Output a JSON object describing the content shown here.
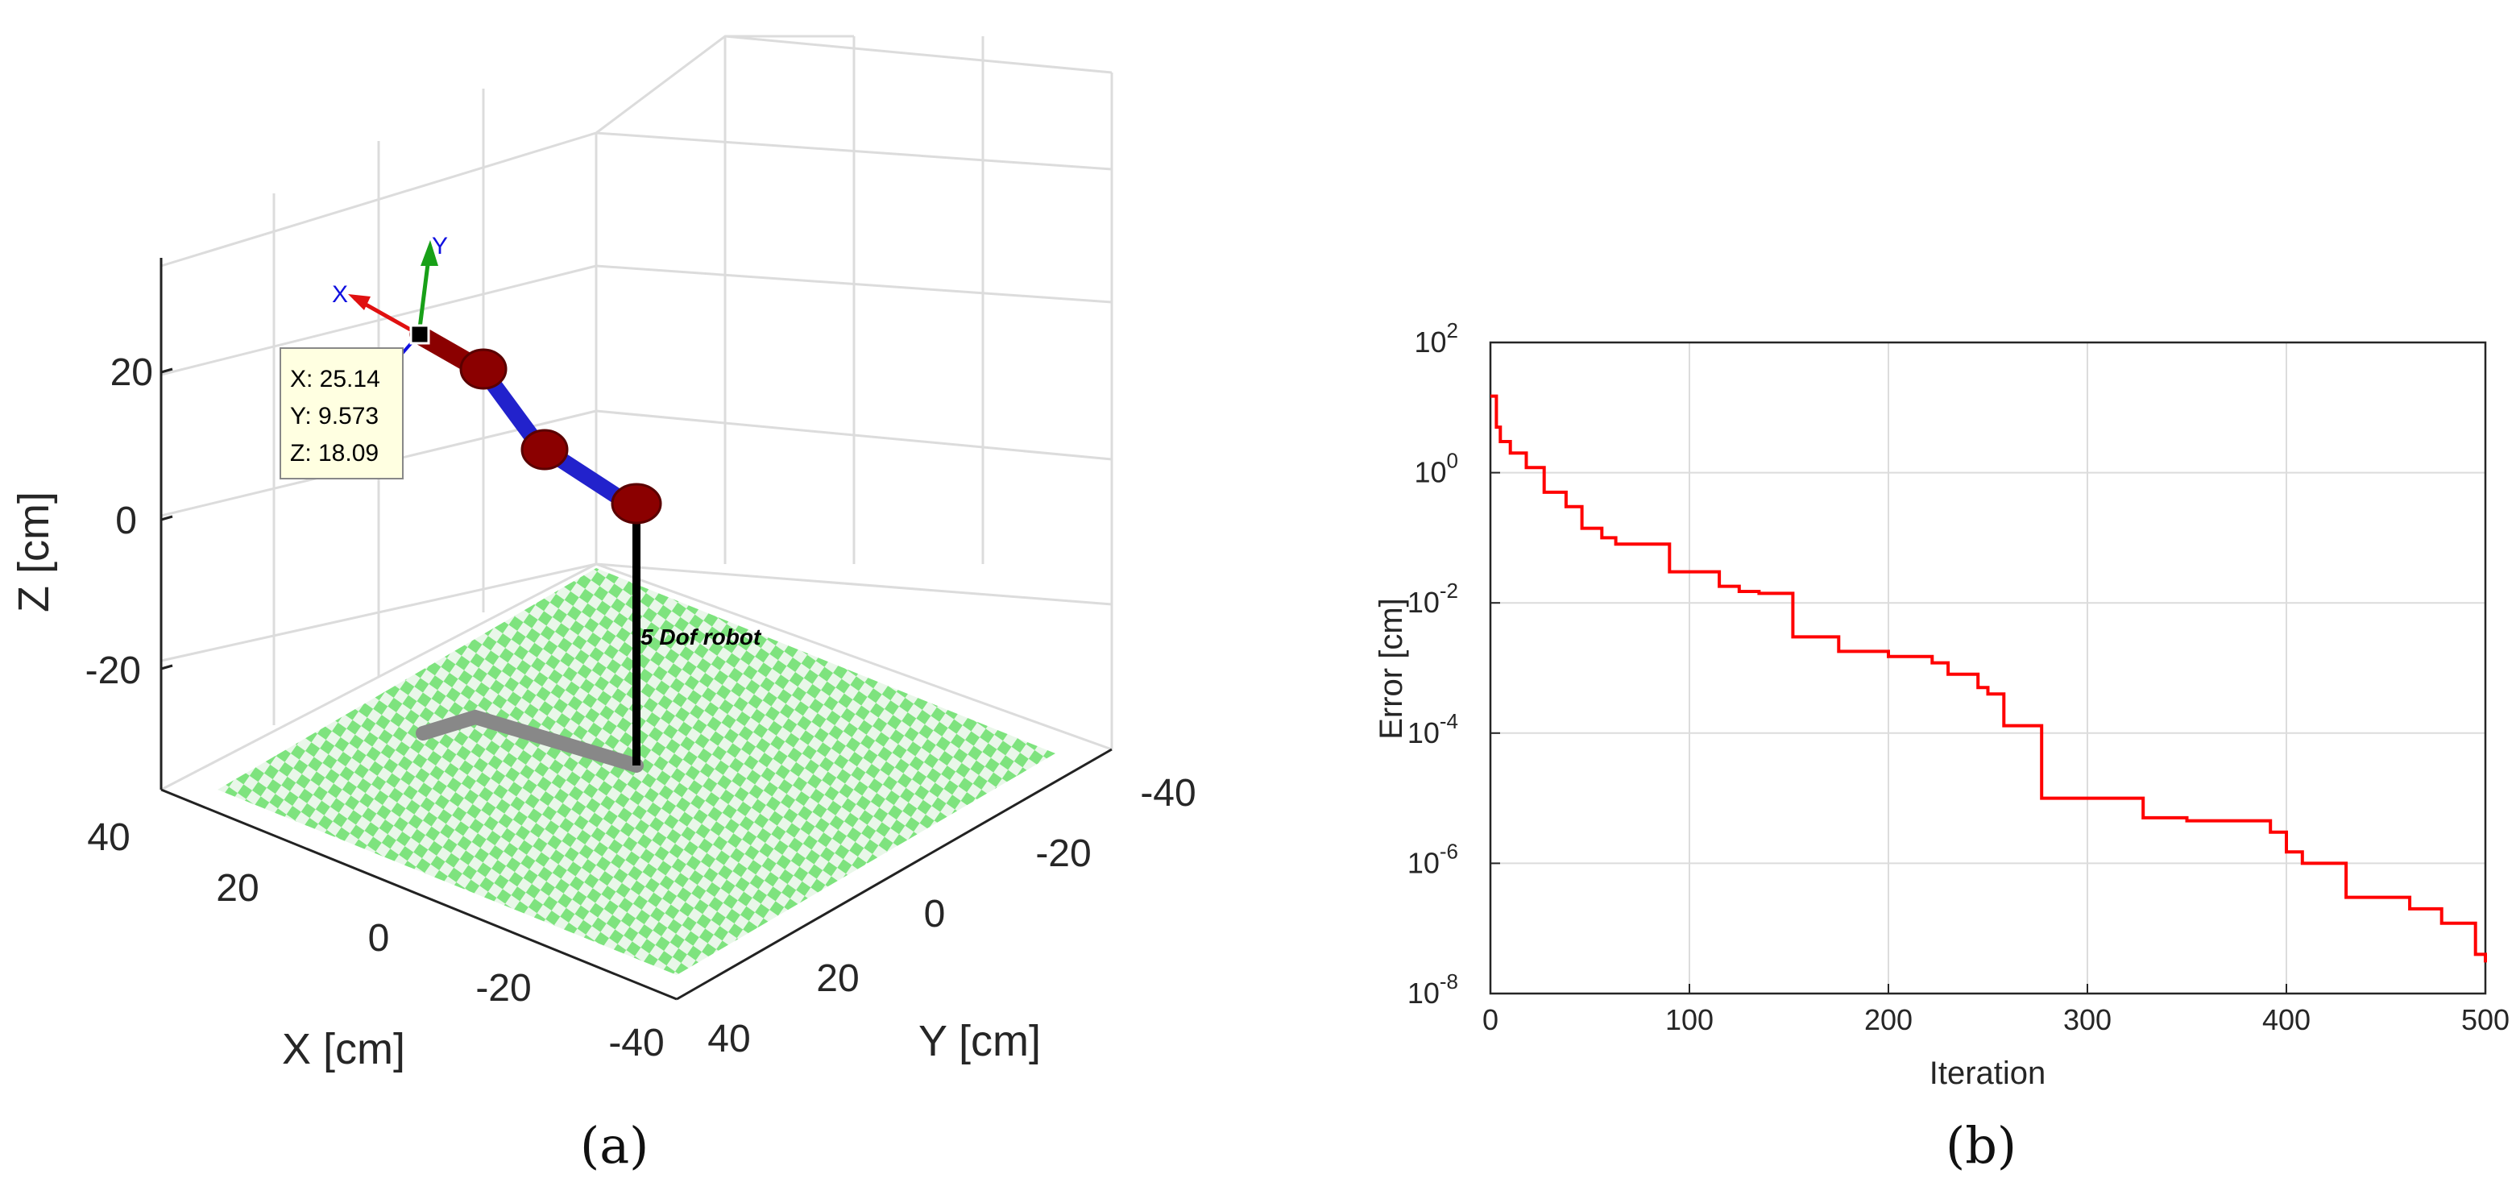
{
  "captions": {
    "a": "(a)",
    "b": "(b)"
  },
  "colors": {
    "error_line": "#ff0000",
    "robot_link": "#2222cc",
    "robot_joint": "#8b0000",
    "floor_a": "#7ee37e",
    "floor_b": "#e9f7e9",
    "grid": "#dcdcdc",
    "datatip_bg": "#ffffe1"
  },
  "panel_a": {
    "xlabel": "X [cm]",
    "ylabel": "Y [cm]",
    "zlabel": "Z [cm]",
    "z_ticks": [
      "20",
      "0",
      "-20"
    ],
    "x_ticks": [
      "40",
      "20",
      "0",
      "-20",
      "-40"
    ],
    "y_ticks": [
      "-40",
      "-20",
      "0",
      "20",
      "40"
    ],
    "robot_label": "5 Dof robot",
    "frame_axes": {
      "x": "X",
      "y": "Y"
    },
    "datatip": {
      "x": "X: 25.14",
      "y": "Y: 9.573",
      "z": "Z: 18.09"
    },
    "icons": [
      "end-effector-marker-icon"
    ]
  },
  "chart_data": {
    "type": "line",
    "xlabel": "Iteration",
    "ylabel": "Error [cm]",
    "xlim": [
      0,
      500
    ],
    "ylim": [
      1e-08,
      100
    ],
    "yscale": "log",
    "grid": true,
    "x_ticks": [
      "0",
      "100",
      "200",
      "300",
      "400",
      "500"
    ],
    "y_tick_exponents": [
      "2",
      "0",
      "-2",
      "-4",
      "-6",
      "-8"
    ],
    "series": [
      {
        "color": "#ff0000",
        "step": true,
        "x": [
          0,
          3,
          5,
          10,
          18,
          27,
          38,
          46,
          56,
          63,
          90,
          115,
          125,
          135,
          152,
          175,
          200,
          222,
          230,
          245,
          250,
          258,
          277,
          328,
          350,
          392,
          400,
          408,
          430,
          462,
          478,
          495,
          500
        ],
        "y": [
          15,
          5,
          3,
          2,
          1.2,
          0.5,
          0.3,
          0.14,
          0.1,
          0.08,
          0.03,
          0.018,
          0.015,
          0.014,
          0.003,
          0.0018,
          0.0015,
          0.0012,
          0.0008,
          0.0005,
          0.0004,
          0.00013,
          1e-05,
          5e-06,
          4.5e-06,
          3e-06,
          1.5e-06,
          1e-06,
          3e-07,
          2e-07,
          1.2e-07,
          4e-08,
          3e-08
        ]
      }
    ]
  }
}
